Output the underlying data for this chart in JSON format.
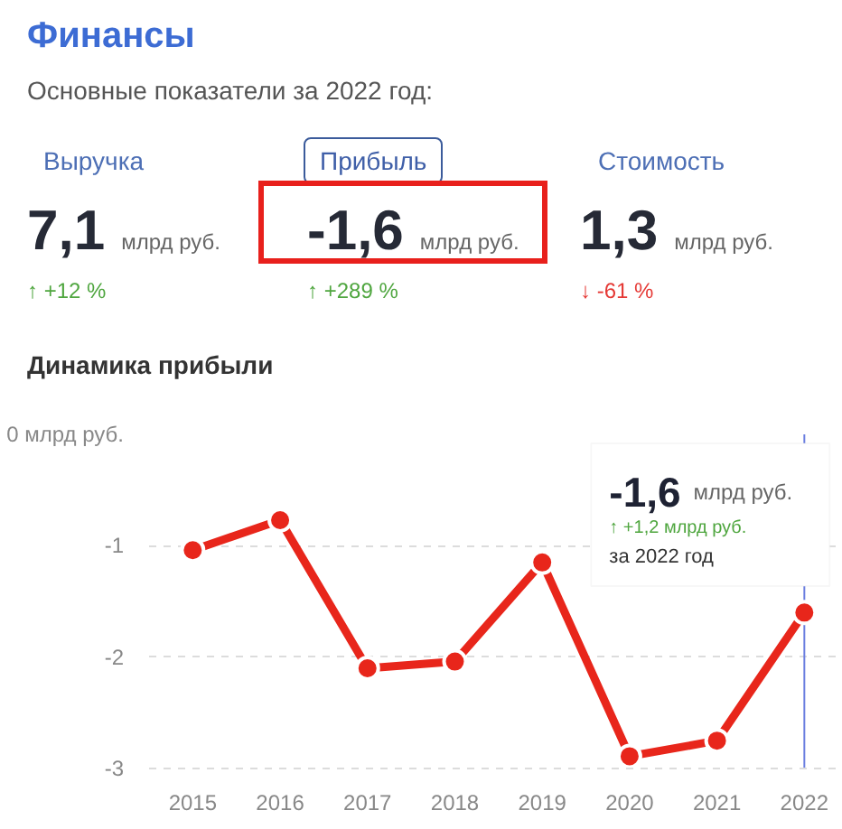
{
  "chart_data": {
    "type": "line",
    "title": "Финансы",
    "subtitle": "Основные показатели за 2022 год:",
    "annotations": [
      "Выручка",
      "7,1 млрд руб.",
      "↑ +12 %",
      "Прибыль",
      "-1,6 млрд руб.",
      "↑ +289 %",
      "Стоимость",
      "1,3 млрд руб.",
      "↓ -61 %",
      "Динамика прибыли",
      "-1,6 млрд руб.",
      "↑ +1,2 млрд руб.",
      "за 2022 год"
    ],
    "x": [
      2015,
      2016,
      2017,
      2018,
      2019,
      2020,
      2021,
      2022
    ],
    "series": [
      {
        "color": "#e8261b",
        "values": [
          -1.04,
          -0.77,
          -2.1,
          -2.04,
          -1.15,
          -2.89,
          -2.75,
          -1.6
        ]
      }
    ],
    "xlim": [
      2014.5,
      2022.4
    ],
    "xticks": [
      2015,
      2016,
      2017,
      2018,
      2019,
      2020,
      2021,
      2022
    ],
    "ylim": [
      -3,
      0
    ],
    "yticks": [
      {
        "value": 0,
        "label": "0 млрд руб."
      },
      -1,
      -2,
      -3
    ],
    "ref_lines": [
      {
        "axis": "x",
        "value": 2022,
        "color": "#6b7fe0"
      }
    ],
    "grid": "y",
    "marker": "circle",
    "line_style": "solid"
  }
}
